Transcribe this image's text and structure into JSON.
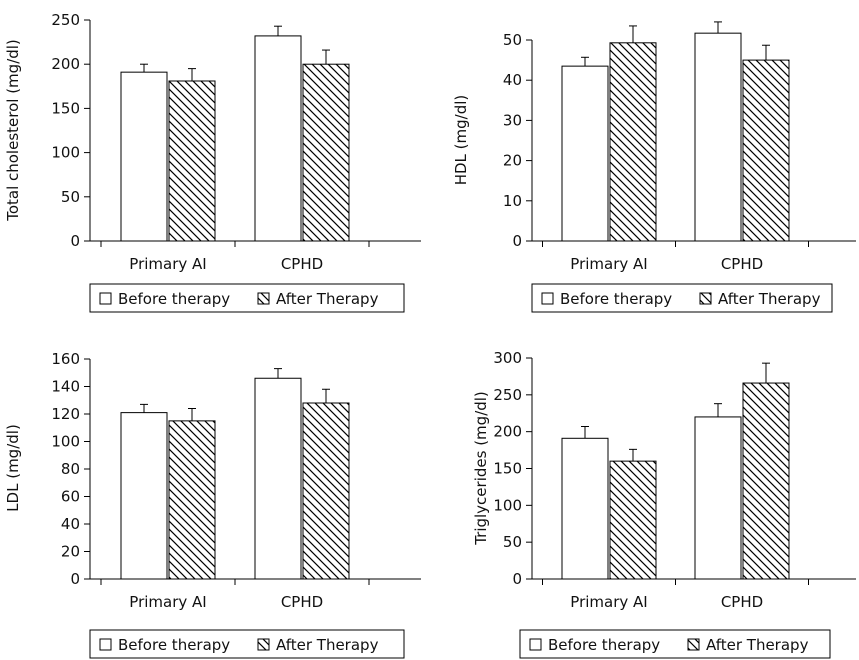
{
  "legend": {
    "before": "Before therapy",
    "after": "After Therapy"
  },
  "colors": {
    "before_fill": "#ffffff",
    "after_hatch": "#000000",
    "axis": "#000000"
  },
  "chart_data": [
    {
      "type": "bar",
      "title": "",
      "xlabel": "",
      "ylabel": "Total cholesterol (mg/dl)",
      "categories": [
        "Primary AI",
        "CPHD"
      ],
      "ylim": [
        0,
        250
      ],
      "yticks": [
        "0",
        "50",
        "100",
        "150",
        "200",
        "250"
      ],
      "legend_position": "bottom",
      "series": [
        {
          "name": "Before therapy",
          "values": [
            191,
            232
          ],
          "errors": [
            9,
            11
          ]
        },
        {
          "name": "After Therapy",
          "values": [
            181,
            200
          ],
          "errors": [
            14,
            16
          ]
        }
      ]
    },
    {
      "type": "bar",
      "title": "",
      "xlabel": "",
      "ylabel": "HDL (mg/dl)",
      "categories": [
        "Primary AI",
        "CPHD"
      ],
      "ylim": [
        0,
        50
      ],
      "yticks": [
        "0",
        "10",
        "20",
        "30",
        "40",
        "50"
      ],
      "legend_position": "bottom",
      "series": [
        {
          "name": "Before therapy",
          "values": [
            43.5,
            51.7
          ],
          "errors": [
            2.2,
            2.8
          ]
        },
        {
          "name": "After Therapy",
          "values": [
            49.3,
            45.0
          ],
          "errors": [
            4.2,
            3.7
          ]
        }
      ]
    },
    {
      "type": "bar",
      "title": "",
      "xlabel": "",
      "ylabel": "LDL (mg/dl)",
      "categories": [
        "Primary AI",
        "CPHD"
      ],
      "ylim": [
        0,
        160
      ],
      "yticks": [
        "0",
        "20",
        "40",
        "60",
        "80",
        "100",
        "120",
        "140",
        "160"
      ],
      "legend_position": "bottom",
      "series": [
        {
          "name": "Before therapy",
          "values": [
            121,
            146
          ],
          "errors": [
            6,
            7
          ]
        },
        {
          "name": "After Therapy",
          "values": [
            115,
            128
          ],
          "errors": [
            9,
            10
          ]
        }
      ]
    },
    {
      "type": "bar",
      "title": "",
      "xlabel": "",
      "ylabel": "Triglycerides (mg/dl)",
      "categories": [
        "Primary AI",
        "CPHD"
      ],
      "ylim": [
        0,
        300
      ],
      "yticks": [
        "0",
        "50",
        "100",
        "150",
        "200",
        "250",
        "300"
      ],
      "legend_position": "bottom",
      "series": [
        {
          "name": "Before therapy",
          "values": [
            191,
            220
          ],
          "errors": [
            16,
            18
          ]
        },
        {
          "name": "After Therapy",
          "values": [
            160,
            266
          ],
          "errors": [
            16,
            27
          ]
        }
      ]
    }
  ]
}
